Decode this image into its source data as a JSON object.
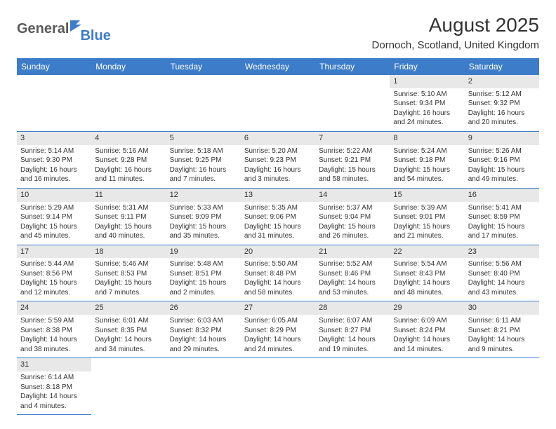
{
  "logo": {
    "main": "General",
    "sub": "Blue"
  },
  "title": "August 2025",
  "location": "Dornoch, Scotland, United Kingdom",
  "colors": {
    "header_bg": "#3d7cc9",
    "header_text": "#ffffff",
    "daynum_bg": "#e8e8e8",
    "text": "#333333",
    "row_border": "#3d7cc9",
    "logo_main": "#5a5a5a",
    "logo_sub": "#3d7cc9",
    "background": "#ffffff"
  },
  "typography": {
    "title_fontsize": 28,
    "location_fontsize": 15,
    "header_fontsize": 12,
    "cell_fontsize": 10,
    "daynum_fontsize": 11
  },
  "weekdays": [
    "Sunday",
    "Monday",
    "Tuesday",
    "Wednesday",
    "Thursday",
    "Friday",
    "Saturday"
  ],
  "first_weekday_index": 5,
  "days_in_month": 31,
  "days": {
    "1": {
      "sunrise": "5:10 AM",
      "sunset": "9:34 PM",
      "dl_h": 16,
      "dl_m": 24
    },
    "2": {
      "sunrise": "5:12 AM",
      "sunset": "9:32 PM",
      "dl_h": 16,
      "dl_m": 20
    },
    "3": {
      "sunrise": "5:14 AM",
      "sunset": "9:30 PM",
      "dl_h": 16,
      "dl_m": 16
    },
    "4": {
      "sunrise": "5:16 AM",
      "sunset": "9:28 PM",
      "dl_h": 16,
      "dl_m": 11
    },
    "5": {
      "sunrise": "5:18 AM",
      "sunset": "9:25 PM",
      "dl_h": 16,
      "dl_m": 7
    },
    "6": {
      "sunrise": "5:20 AM",
      "sunset": "9:23 PM",
      "dl_h": 16,
      "dl_m": 3
    },
    "7": {
      "sunrise": "5:22 AM",
      "sunset": "9:21 PM",
      "dl_h": 15,
      "dl_m": 58
    },
    "8": {
      "sunrise": "5:24 AM",
      "sunset": "9:18 PM",
      "dl_h": 15,
      "dl_m": 54
    },
    "9": {
      "sunrise": "5:26 AM",
      "sunset": "9:16 PM",
      "dl_h": 15,
      "dl_m": 49
    },
    "10": {
      "sunrise": "5:29 AM",
      "sunset": "9:14 PM",
      "dl_h": 15,
      "dl_m": 45
    },
    "11": {
      "sunrise": "5:31 AM",
      "sunset": "9:11 PM",
      "dl_h": 15,
      "dl_m": 40
    },
    "12": {
      "sunrise": "5:33 AM",
      "sunset": "9:09 PM",
      "dl_h": 15,
      "dl_m": 35
    },
    "13": {
      "sunrise": "5:35 AM",
      "sunset": "9:06 PM",
      "dl_h": 15,
      "dl_m": 31
    },
    "14": {
      "sunrise": "5:37 AM",
      "sunset": "9:04 PM",
      "dl_h": 15,
      "dl_m": 26
    },
    "15": {
      "sunrise": "5:39 AM",
      "sunset": "9:01 PM",
      "dl_h": 15,
      "dl_m": 21
    },
    "16": {
      "sunrise": "5:41 AM",
      "sunset": "8:59 PM",
      "dl_h": 15,
      "dl_m": 17
    },
    "17": {
      "sunrise": "5:44 AM",
      "sunset": "8:56 PM",
      "dl_h": 15,
      "dl_m": 12
    },
    "18": {
      "sunrise": "5:46 AM",
      "sunset": "8:53 PM",
      "dl_h": 15,
      "dl_m": 7
    },
    "19": {
      "sunrise": "5:48 AM",
      "sunset": "8:51 PM",
      "dl_h": 15,
      "dl_m": 2
    },
    "20": {
      "sunrise": "5:50 AM",
      "sunset": "8:48 PM",
      "dl_h": 14,
      "dl_m": 58
    },
    "21": {
      "sunrise": "5:52 AM",
      "sunset": "8:46 PM",
      "dl_h": 14,
      "dl_m": 53
    },
    "22": {
      "sunrise": "5:54 AM",
      "sunset": "8:43 PM",
      "dl_h": 14,
      "dl_m": 48
    },
    "23": {
      "sunrise": "5:56 AM",
      "sunset": "8:40 PM",
      "dl_h": 14,
      "dl_m": 43
    },
    "24": {
      "sunrise": "5:59 AM",
      "sunset": "8:38 PM",
      "dl_h": 14,
      "dl_m": 38
    },
    "25": {
      "sunrise": "6:01 AM",
      "sunset": "8:35 PM",
      "dl_h": 14,
      "dl_m": 34
    },
    "26": {
      "sunrise": "6:03 AM",
      "sunset": "8:32 PM",
      "dl_h": 14,
      "dl_m": 29
    },
    "27": {
      "sunrise": "6:05 AM",
      "sunset": "8:29 PM",
      "dl_h": 14,
      "dl_m": 24
    },
    "28": {
      "sunrise": "6:07 AM",
      "sunset": "8:27 PM",
      "dl_h": 14,
      "dl_m": 19
    },
    "29": {
      "sunrise": "6:09 AM",
      "sunset": "8:24 PM",
      "dl_h": 14,
      "dl_m": 14
    },
    "30": {
      "sunrise": "6:11 AM",
      "sunset": "8:21 PM",
      "dl_h": 14,
      "dl_m": 9
    },
    "31": {
      "sunrise": "6:14 AM",
      "sunset": "8:18 PM",
      "dl_h": 14,
      "dl_m": 4
    }
  },
  "labels": {
    "sunrise_prefix": "Sunrise: ",
    "sunset_prefix": "Sunset: ",
    "daylight_prefix": "Daylight: ",
    "hours_word": " hours",
    "and_word": "and ",
    "minutes_word": " minutes."
  }
}
